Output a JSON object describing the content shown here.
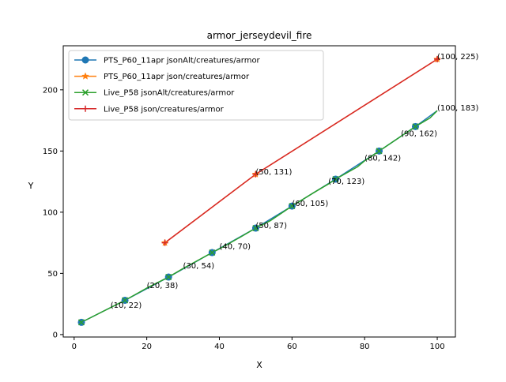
{
  "chart_data": {
    "type": "line",
    "title": "armor_jerseydevil_fire",
    "xlabel": "X",
    "ylabel": "Y",
    "xlim": [
      -3,
      105
    ],
    "ylim": [
      -2,
      236
    ],
    "xticks": [
      0,
      20,
      40,
      60,
      80,
      100
    ],
    "yticks": [
      0,
      50,
      100,
      150,
      200
    ],
    "xtick_labels": [
      "0",
      "20",
      "40",
      "60",
      "80",
      "100"
    ],
    "ytick_labels": [
      "0",
      "50",
      "100",
      "150",
      "200"
    ],
    "legend_position": "top-left",
    "grid": false,
    "series": [
      {
        "name": "PTS_P60_11apr jsonAlt/creatures/armor",
        "color": "#1f77b4",
        "marker": "circle",
        "x": [
          2,
          14,
          26,
          38,
          50,
          60,
          72,
          84,
          94,
          100
        ],
        "y": [
          10,
          28,
          47,
          67,
          87,
          105,
          127,
          150,
          170,
          183
        ],
        "marker_x": [
          2,
          14,
          26,
          38,
          50,
          60,
          72,
          84,
          94
        ]
      },
      {
        "name": "PTS_P60_11apr json/creatures/armor",
        "color": "#ff7f0e",
        "marker": "star",
        "x": [
          25,
          50,
          100
        ],
        "y": [
          75,
          131,
          225
        ],
        "marker_x": [
          25,
          50,
          100
        ]
      },
      {
        "name": "Live_P58 jsonAlt/creatures/armor",
        "color": "#2ca02c",
        "marker": "x",
        "x": [
          2,
          10,
          14,
          20,
          26,
          30,
          38,
          40,
          46,
          50,
          54,
          60,
          66,
          70,
          72,
          78,
          80,
          84,
          90,
          94,
          98,
          100
        ],
        "y": [
          10,
          22,
          28,
          38,
          47,
          54,
          67,
          70,
          80,
          87,
          93,
          105,
          116,
          123,
          127,
          137,
          142,
          150,
          162,
          170,
          177,
          183
        ],
        "marker_x": [
          2,
          14,
          26,
          38,
          50,
          60,
          72,
          84,
          94
        ]
      },
      {
        "name": "Live_P58 json/creatures/armor",
        "color": "#d62728",
        "marker": "plus",
        "x": [
          25,
          50,
          100
        ],
        "y": [
          75,
          131,
          225
        ],
        "marker_x": [
          25,
          50,
          100
        ]
      }
    ],
    "annotations": [
      {
        "text": "(10, 22)",
        "x": 10,
        "y": 22
      },
      {
        "text": "(20, 38)",
        "x": 20,
        "y": 38
      },
      {
        "text": "(30, 54)",
        "x": 30,
        "y": 54
      },
      {
        "text": "(40, 70)",
        "x": 40,
        "y": 70
      },
      {
        "text": "(50, 87)",
        "x": 50,
        "y": 87
      },
      {
        "text": "(50, 131)",
        "x": 50,
        "y": 131
      },
      {
        "text": "(60, 105)",
        "x": 60,
        "y": 105
      },
      {
        "text": "(70, 123)",
        "x": 70,
        "y": 123
      },
      {
        "text": "(80, 142)",
        "x": 80,
        "y": 142
      },
      {
        "text": "(90, 162)",
        "x": 90,
        "y": 162
      },
      {
        "text": "(100, 183)",
        "x": 100,
        "y": 183
      },
      {
        "text": "(100, 225)",
        "x": 100,
        "y": 225
      }
    ]
  }
}
